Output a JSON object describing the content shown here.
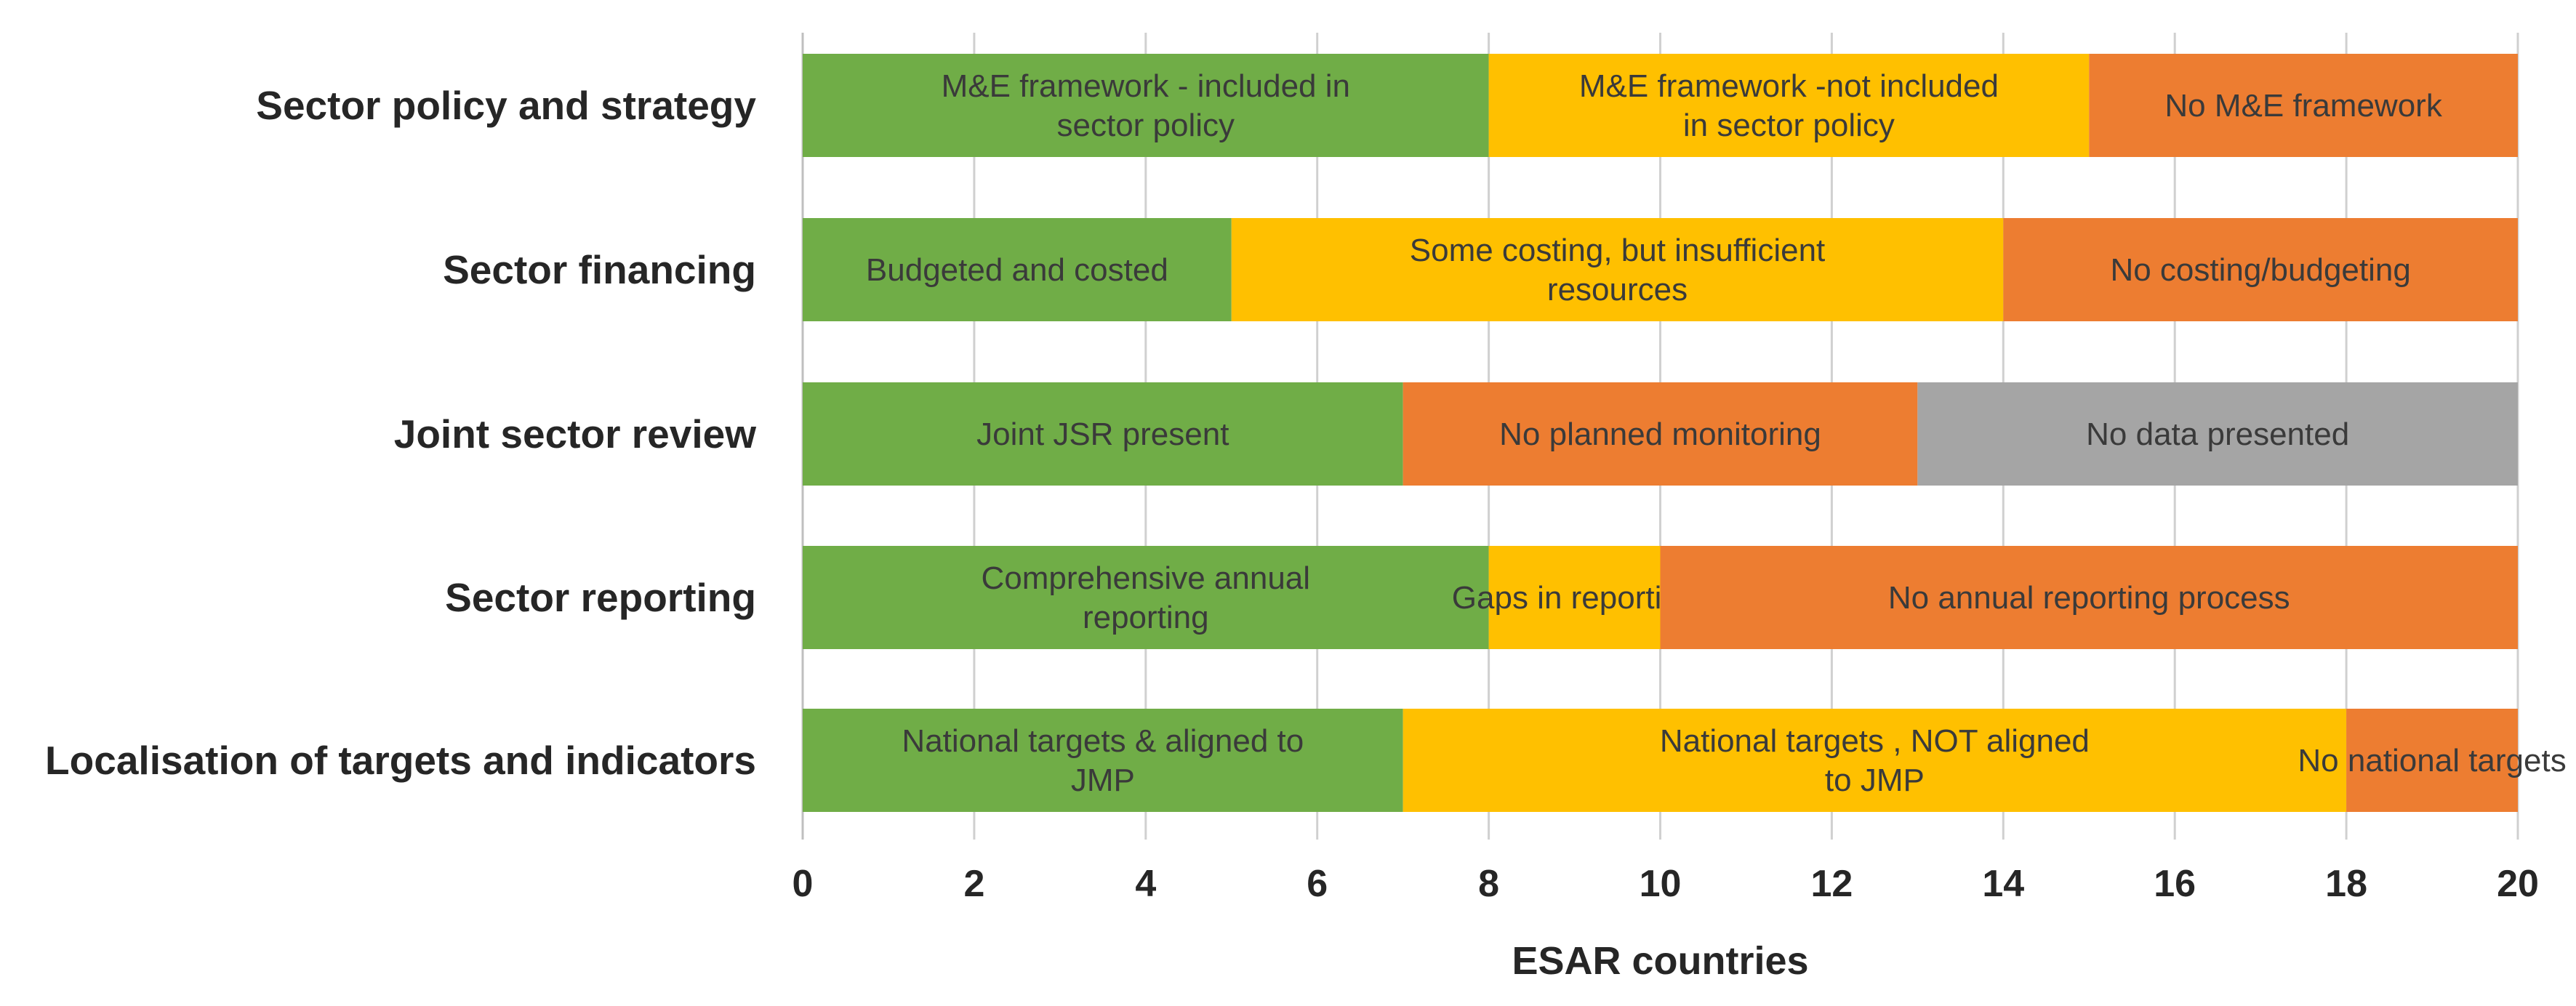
{
  "chart_data": {
    "type": "bar",
    "orientation": "horizontal",
    "stacked": true,
    "xlabel": "ESAR countries",
    "xlim": [
      0,
      20
    ],
    "xticks": [
      0,
      2,
      4,
      6,
      8,
      10,
      12,
      14,
      16,
      18,
      20
    ],
    "grid": true,
    "legend": "none",
    "colors": {
      "green": "#70ad47",
      "yellow": "#ffc000",
      "orange": "#ed7d31",
      "grey": "#a5a5a5"
    },
    "categories": [
      "Sector policy and strategy",
      "Sector financing",
      "Joint sector review",
      "Sector reporting",
      "Localisation of targets and indicators"
    ],
    "bars": [
      {
        "category": "Sector policy and strategy",
        "segments": [
          {
            "value": 8,
            "label": [
              "M&E  framework - included in",
              "sector policy"
            ],
            "color": "green"
          },
          {
            "value": 7,
            "label": [
              "M&E framework -not included",
              "in sector policy"
            ],
            "color": "yellow"
          },
          {
            "value": 5,
            "label": [
              "No M&E framework"
            ],
            "color": "orange"
          }
        ]
      },
      {
        "category": "Sector financing",
        "segments": [
          {
            "value": 5,
            "label": [
              "Budgeted and costed"
            ],
            "color": "green"
          },
          {
            "value": 9,
            "label": [
              "Some costing, but insufficient",
              "resources"
            ],
            "color": "yellow"
          },
          {
            "value": 6,
            "label": [
              "No costing/budgeting"
            ],
            "color": "orange"
          }
        ]
      },
      {
        "category": "Joint sector review",
        "segments": [
          {
            "value": 7,
            "label": [
              "Joint JSR present"
            ],
            "color": "green"
          },
          {
            "value": 6,
            "label": [
              "No planned monitoring"
            ],
            "color": "orange"
          },
          {
            "value": 7,
            "label": [
              "No data presented"
            ],
            "color": "grey"
          }
        ]
      },
      {
        "category": "Sector reporting",
        "segments": [
          {
            "value": 8,
            "label": [
              "Comprehensive annual",
              "reporting"
            ],
            "color": "green"
          },
          {
            "value": 2,
            "label": [
              "Gaps in reporting"
            ],
            "color": "yellow"
          },
          {
            "value": 10,
            "label": [
              "No annual reporting process"
            ],
            "color": "orange"
          }
        ]
      },
      {
        "category": "Localisation of targets and indicators",
        "segments": [
          {
            "value": 7,
            "label": [
              "National targets & aligned to",
              "JMP"
            ],
            "color": "green"
          },
          {
            "value": 11,
            "label": [
              "National targets , NOT aligned",
              "to JMP"
            ],
            "color": "yellow"
          },
          {
            "value": 2,
            "label": [
              "No national targets"
            ],
            "color": "orange"
          }
        ]
      }
    ]
  }
}
